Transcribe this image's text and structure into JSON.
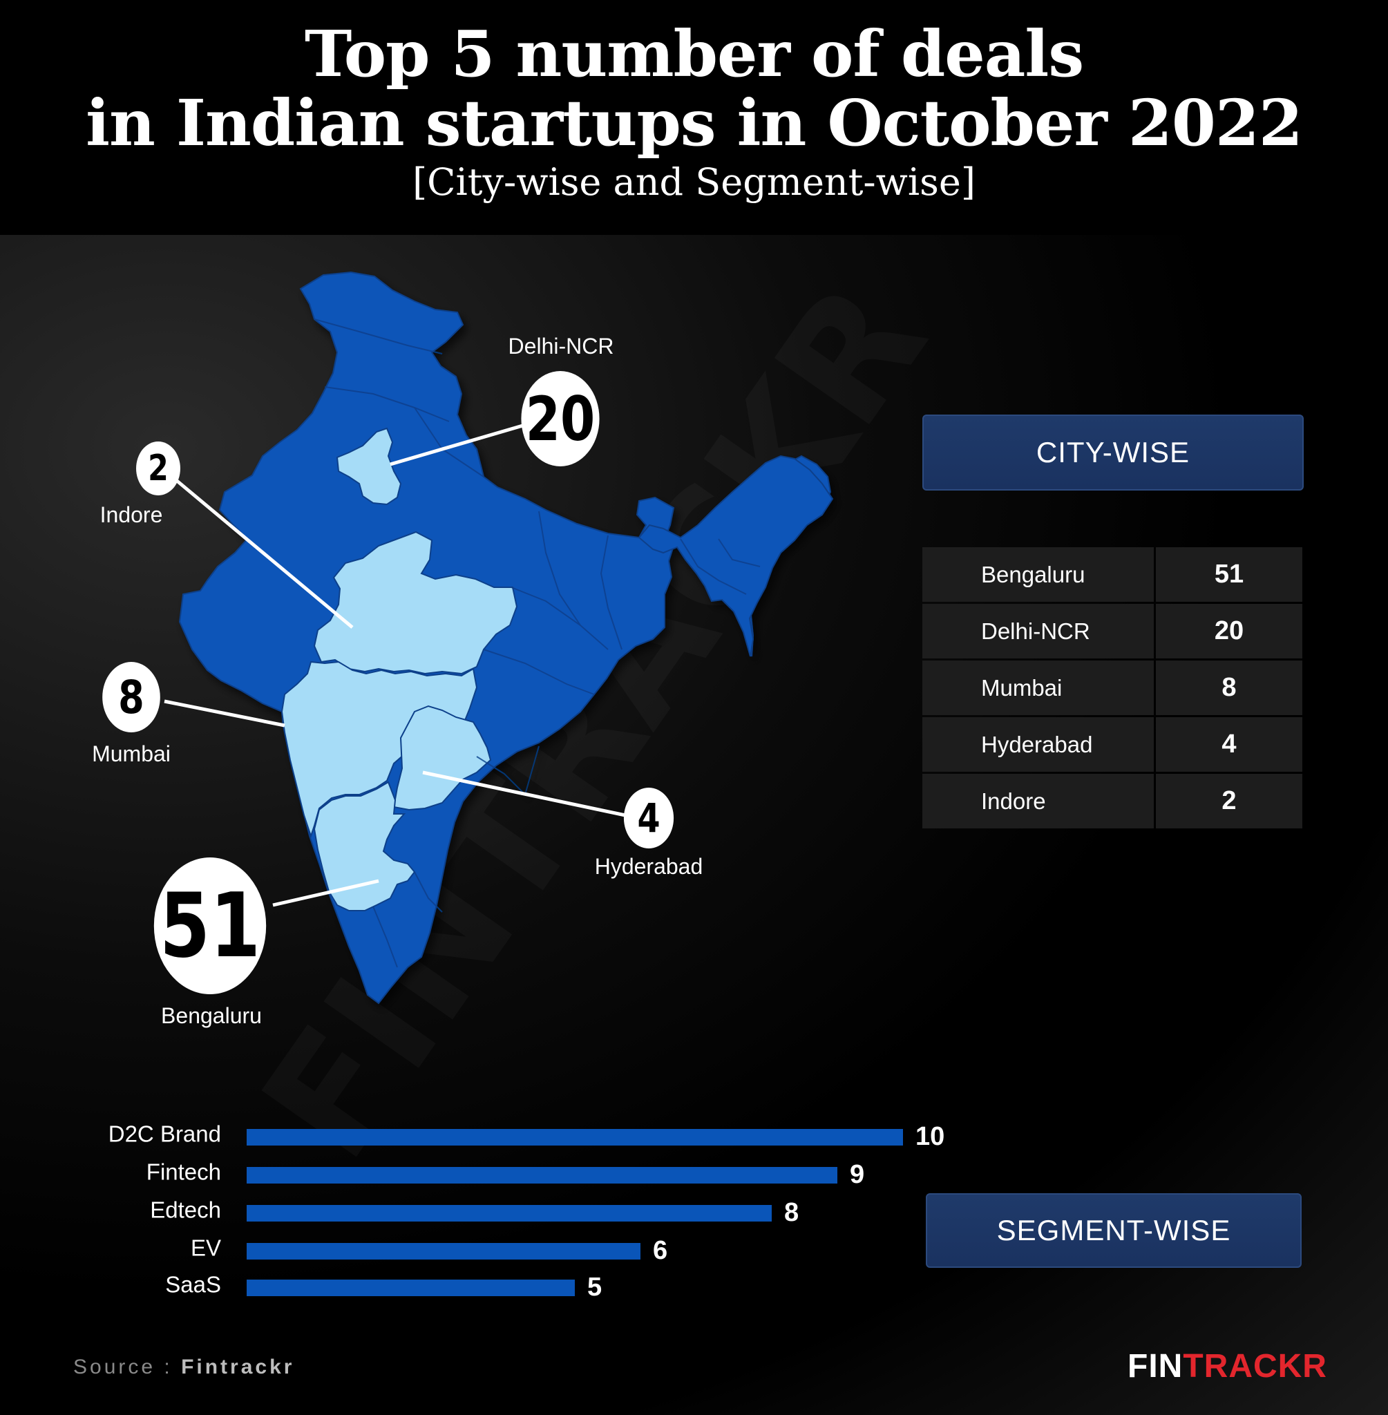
{
  "header": {
    "title_line1": "Top 5 number of deals",
    "title_line2": "in Indian startups in October 2022",
    "subtitle": "[City-wise and Segment-wise]"
  },
  "city_section": {
    "label": "CITY-WISE"
  },
  "segment_section": {
    "label": "SEGMENT-WISE"
  },
  "map_callouts": [
    {
      "city": "Delhi-NCR",
      "deals": "20"
    },
    {
      "city": "Indore",
      "deals": "2"
    },
    {
      "city": "Mumbai",
      "deals": "8"
    },
    {
      "city": "Hyderabad",
      "deals": "4"
    },
    {
      "city": "Bengaluru",
      "deals": "51"
    }
  ],
  "colors": {
    "map_dark": "#0a55b8",
    "map_light": "#a6dcf7",
    "bar": "#0a55b8",
    "logo_red": "#e3262d"
  },
  "chart_data": [
    {
      "type": "table",
      "title": "CITY-WISE",
      "rows": [
        {
          "city": "Bengaluru",
          "deals": 51
        },
        {
          "city": "Delhi-NCR",
          "deals": 20
        },
        {
          "city": "Mumbai",
          "deals": 8
        },
        {
          "city": "Hyderabad",
          "deals": 4
        },
        {
          "city": "Indore",
          "deals": 2
        }
      ]
    },
    {
      "type": "bar",
      "title": "SEGMENT-WISE",
      "orientation": "horizontal",
      "categories": [
        "D2C Brand",
        "Fintech",
        "Edtech",
        "EV",
        "SaaS"
      ],
      "values": [
        10,
        9,
        8,
        6,
        5
      ],
      "xlim": [
        0,
        10
      ]
    }
  ],
  "footer": {
    "source_prefix": "Source : ",
    "source_name": "Fintrackr",
    "logo_part1": "FIN",
    "logo_part2": "TRACKR"
  }
}
